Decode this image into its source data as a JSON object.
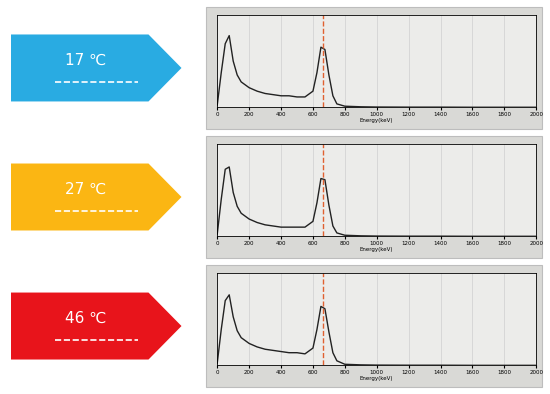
{
  "chart_data": [
    {
      "type": "line",
      "title": "17 ℃",
      "color": "#29abe2",
      "x_label": "Energy(keV)",
      "x": [
        0,
        25,
        50,
        75,
        100,
        125,
        150,
        200,
        250,
        300,
        350,
        400,
        450,
        500,
        550,
        600,
        625,
        650,
        675,
        700,
        725,
        750,
        800,
        900,
        1000,
        1200,
        1400,
        1600,
        1800,
        2000
      ],
      "values": [
        2,
        30,
        55,
        62,
        40,
        28,
        22,
        17,
        14,
        12,
        11,
        10,
        10,
        9,
        9,
        14,
        30,
        52,
        50,
        28,
        10,
        3,
        1,
        0.5,
        0.3,
        0.2,
        0.2,
        0.1,
        0.1,
        0.1
      ],
      "peak_energy": 662,
      "xlim": [
        0,
        2000
      ],
      "xticks": [
        0,
        200,
        400,
        600,
        800,
        1000,
        1200,
        1400,
        1600,
        1800,
        2000
      ],
      "ylim": [
        0,
        80
      ],
      "yticks": [],
      "tick_labels": "x",
      "grid": true
    },
    {
      "type": "line",
      "title": "27 ℃",
      "color": "#fbb613",
      "x_label": "Energy(keV)",
      "x": [
        0,
        25,
        50,
        75,
        100,
        125,
        150,
        200,
        250,
        300,
        350,
        400,
        450,
        500,
        550,
        600,
        625,
        650,
        675,
        700,
        725,
        750,
        800,
        900,
        1000,
        1200,
        1400,
        1600,
        1800,
        2000
      ],
      "values": [
        2,
        32,
        58,
        60,
        38,
        26,
        20,
        15,
        12,
        10,
        9,
        8,
        8,
        8,
        8,
        13,
        29,
        50,
        49,
        27,
        9,
        3,
        1,
        0.5,
        0.3,
        0.2,
        0.2,
        0.1,
        0.1,
        0.1
      ],
      "peak_energy": 662,
      "xlim": [
        0,
        2000
      ],
      "xticks": [
        0,
        200,
        400,
        600,
        800,
        1000,
        1200,
        1400,
        1600,
        1800,
        2000
      ],
      "ylim": [
        0,
        80
      ],
      "yticks": [],
      "tick_labels": "x",
      "grid": true
    },
    {
      "type": "line",
      "title": "46 ℃",
      "color": "#e8141b",
      "x_label": "Energy(keV)",
      "x": [
        0,
        25,
        50,
        75,
        100,
        125,
        150,
        200,
        250,
        300,
        350,
        400,
        450,
        500,
        550,
        600,
        625,
        650,
        675,
        700,
        725,
        750,
        800,
        900,
        1000,
        1200,
        1400,
        1600,
        1800,
        2000
      ],
      "values": [
        2,
        31,
        56,
        61,
        42,
        30,
        24,
        19,
        16,
        14,
        13,
        12,
        11,
        11,
        10,
        15,
        31,
        51,
        49,
        29,
        11,
        4,
        1,
        0.5,
        0.3,
        0.2,
        0.2,
        0.1,
        0.1,
        0.1
      ],
      "peak_energy": 662,
      "xlim": [
        0,
        2000
      ],
      "xticks": [
        0,
        200,
        400,
        600,
        800,
        1000,
        1200,
        1400,
        1600,
        1800,
        2000
      ],
      "ylim": [
        0,
        80
      ],
      "yticks": [],
      "tick_labels": "x",
      "grid": true
    }
  ]
}
